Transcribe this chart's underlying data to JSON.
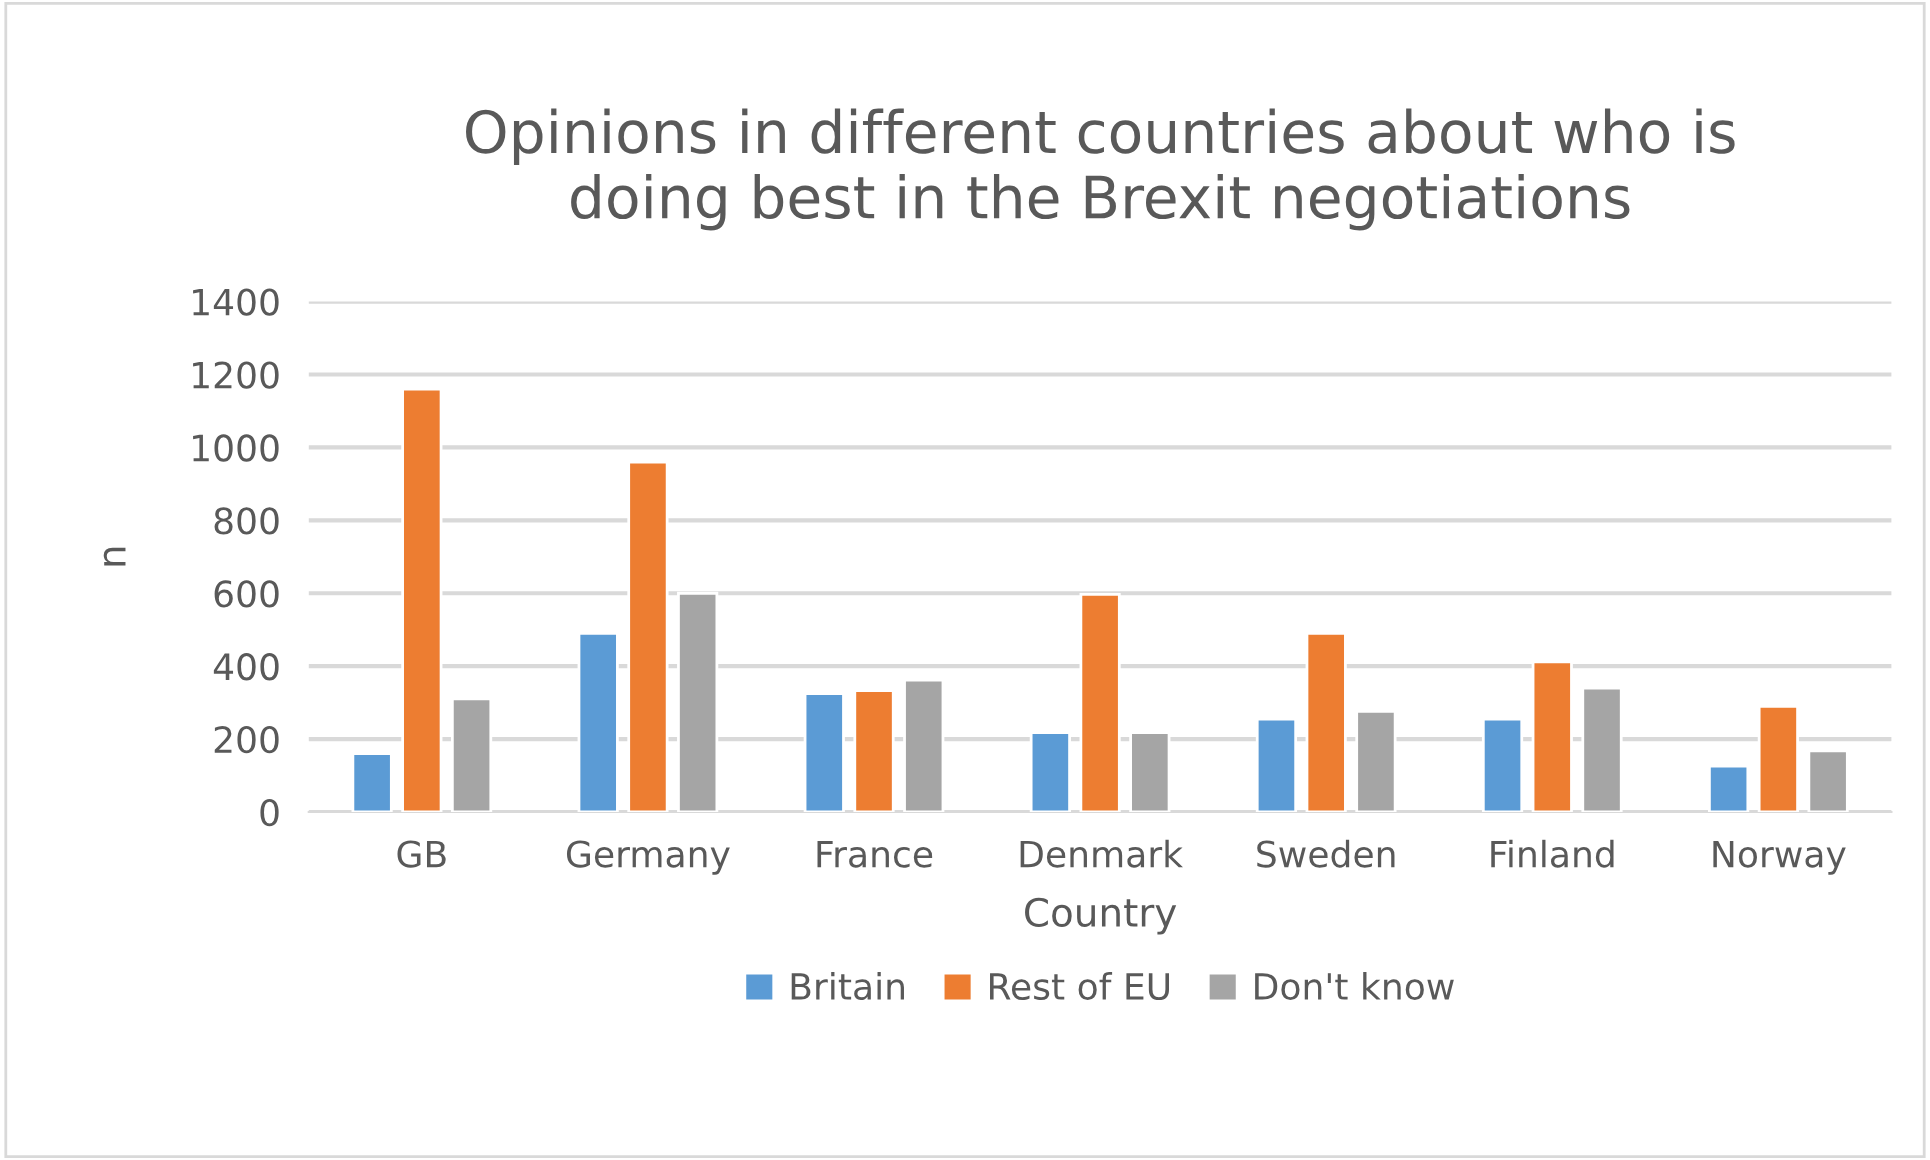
{
  "chart_data": {
    "type": "bar",
    "title": "Opinions in different countries about who is\ndoing best in the Brexit negotiations",
    "xlabel": "Country",
    "ylabel": "n",
    "categories": [
      "GB",
      "Germany",
      "France",
      "Denmark",
      "Sweden",
      "Finland",
      "Norway"
    ],
    "series": [
      {
        "name": "Britain",
        "color": "#5b9bd5",
        "values": [
          160,
          490,
          325,
          218,
          255,
          255,
          126
        ]
      },
      {
        "name": "Rest of EU",
        "color": "#ed7d31",
        "values": [
          1160,
          960,
          333,
          597,
          490,
          412,
          290
        ]
      },
      {
        "name": "Don't know",
        "color": "#a5a5a5",
        "values": [
          310,
          600,
          362,
          218,
          276,
          340,
          168
        ]
      }
    ],
    "ylim": [
      0,
      1400
    ],
    "yticks": [
      0,
      200,
      400,
      600,
      800,
      1000,
      1200,
      1400
    ],
    "grid": "y",
    "legend": "bottom"
  }
}
